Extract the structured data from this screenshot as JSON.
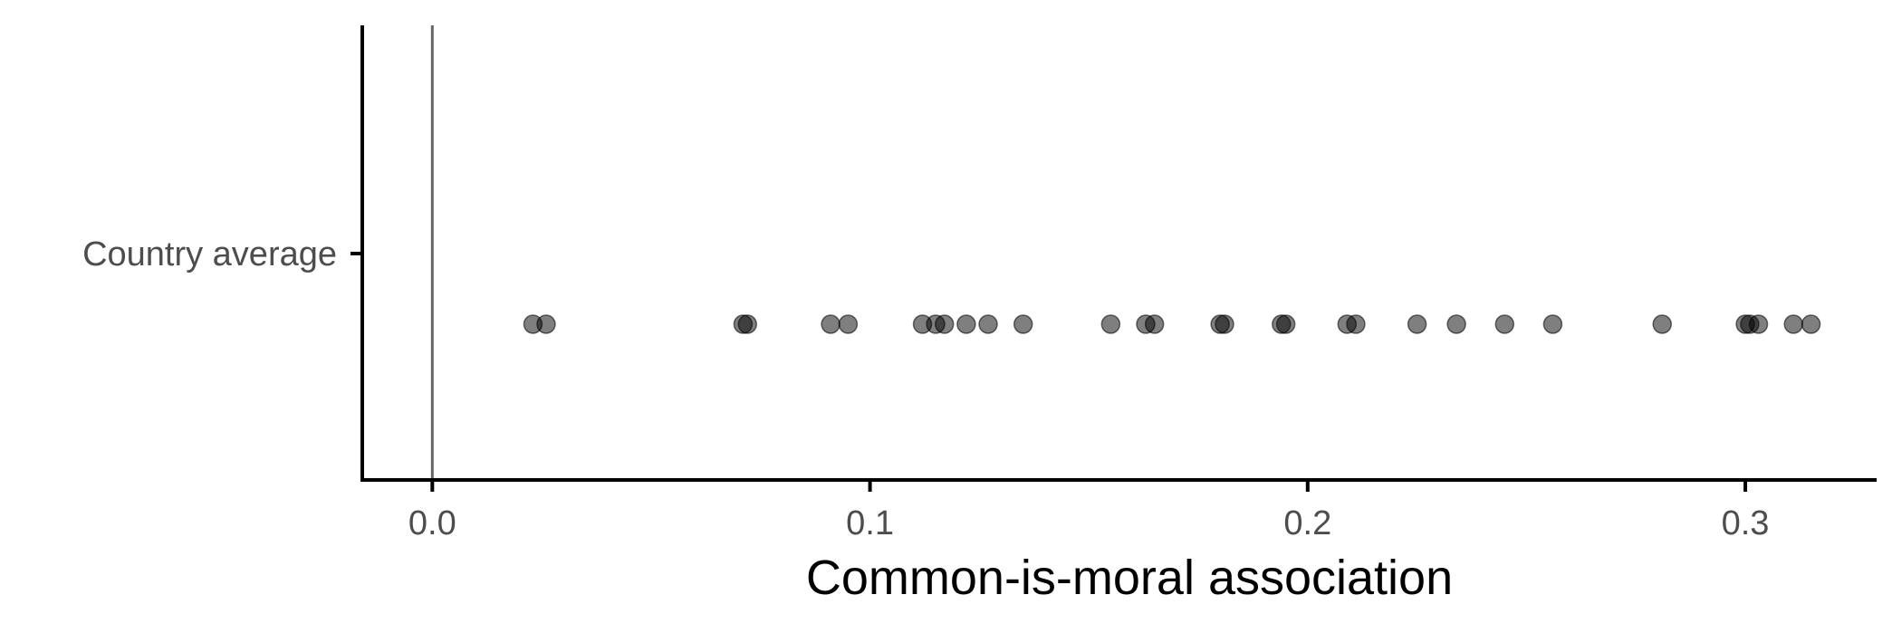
{
  "chart_data": {
    "type": "scatter",
    "title": "",
    "xlabel": "Common-is-moral association",
    "ylabel": "",
    "categories": [
      "Country average"
    ],
    "xlim": [
      -0.016,
      0.33
    ],
    "x_ticks": [
      {
        "value": 0.0,
        "label": "0.0"
      },
      {
        "value": 0.1,
        "label": "0.1"
      },
      {
        "value": 0.2,
        "label": "0.2"
      },
      {
        "value": 0.3,
        "label": "0.3"
      }
    ],
    "reference_line_x": 0,
    "grid": false,
    "legend": "none",
    "point_color": "#000000",
    "point_alpha": 0.5,
    "reference_line_color": "#666666",
    "series": [
      {
        "category": "Country average",
        "x": [
          0.023,
          0.026,
          0.071,
          0.072,
          0.091,
          0.095,
          0.112,
          0.115,
          0.117,
          0.122,
          0.127,
          0.135,
          0.155,
          0.163,
          0.165,
          0.18,
          0.181,
          0.194,
          0.195,
          0.209,
          0.211,
          0.225,
          0.234,
          0.245,
          0.256,
          0.281,
          0.3,
          0.301,
          0.303,
          0.311,
          0.315
        ]
      }
    ]
  }
}
